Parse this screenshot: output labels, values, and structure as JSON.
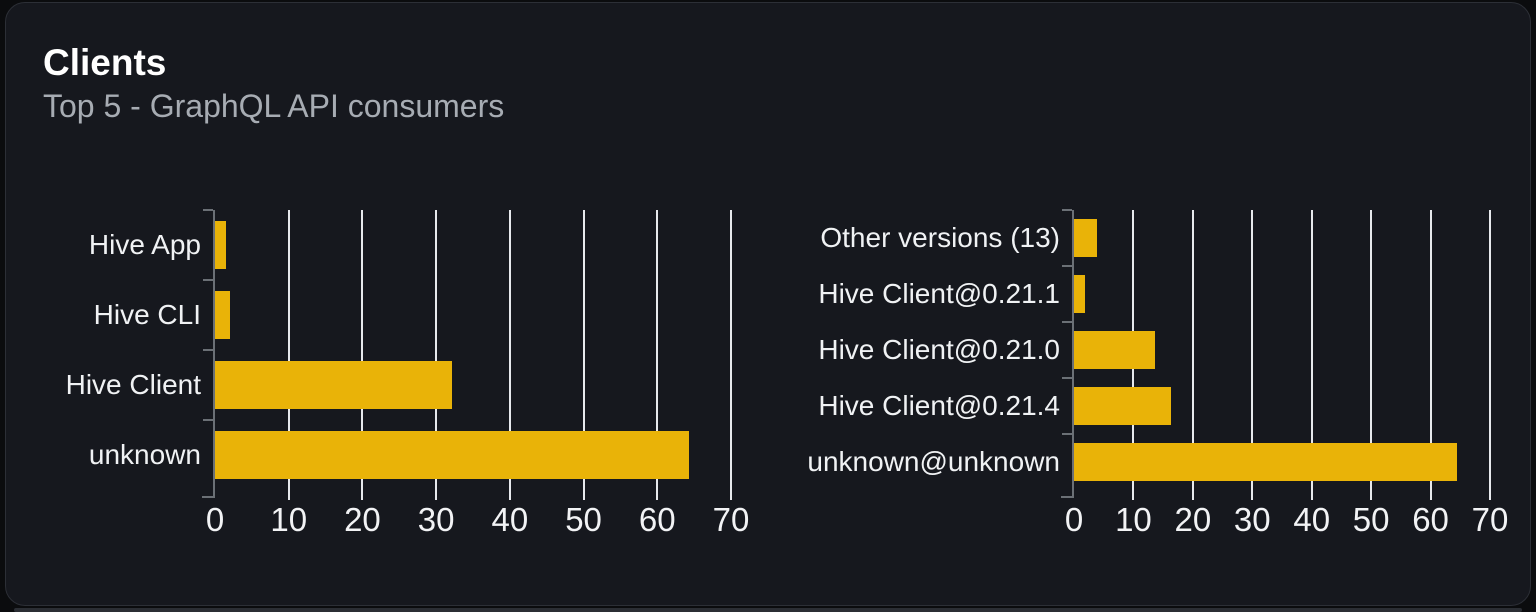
{
  "card": {
    "title": "Clients",
    "subtitle": "Top 5 - GraphQL API consumers"
  },
  "colors": {
    "bar": "#e9b308",
    "gridline": "#e7e9ed",
    "axis": "#6b7076",
    "title": "#ffffff",
    "subtitle": "#a7acb3",
    "label": "#f0f2f4",
    "tick_label": "#f2f3f5",
    "card_bg": "#16181e",
    "card_border": "#2c2f36",
    "page_bg": "#0b0c0e",
    "strip": "#2b2e34"
  },
  "chart_data": [
    {
      "type": "bar",
      "orientation": "horizontal",
      "categories": [
        "Hive App",
        "Hive CLI",
        "Hive Client",
        "unknown"
      ],
      "values": [
        1.5,
        2.1,
        32.1,
        64.3
      ],
      "xlabel": "",
      "ylabel": "",
      "xlim": [
        0,
        70
      ],
      "xticks": [
        0,
        10,
        20,
        30,
        40,
        50,
        60,
        70
      ],
      "grid": true,
      "legend": false
    },
    {
      "type": "bar",
      "orientation": "horizontal",
      "categories": [
        "Other versions (13)",
        "Hive Client@0.21.1",
        "Hive Client@0.21.0",
        "Hive Client@0.21.4",
        "unknown@unknown"
      ],
      "values": [
        3.8,
        1.8,
        13.6,
        16.4,
        64.5
      ],
      "xlabel": "",
      "ylabel": "",
      "xlim": [
        0,
        70
      ],
      "xticks": [
        0,
        10,
        20,
        30,
        40,
        50,
        60,
        70
      ],
      "grid": true,
      "legend": false
    }
  ]
}
